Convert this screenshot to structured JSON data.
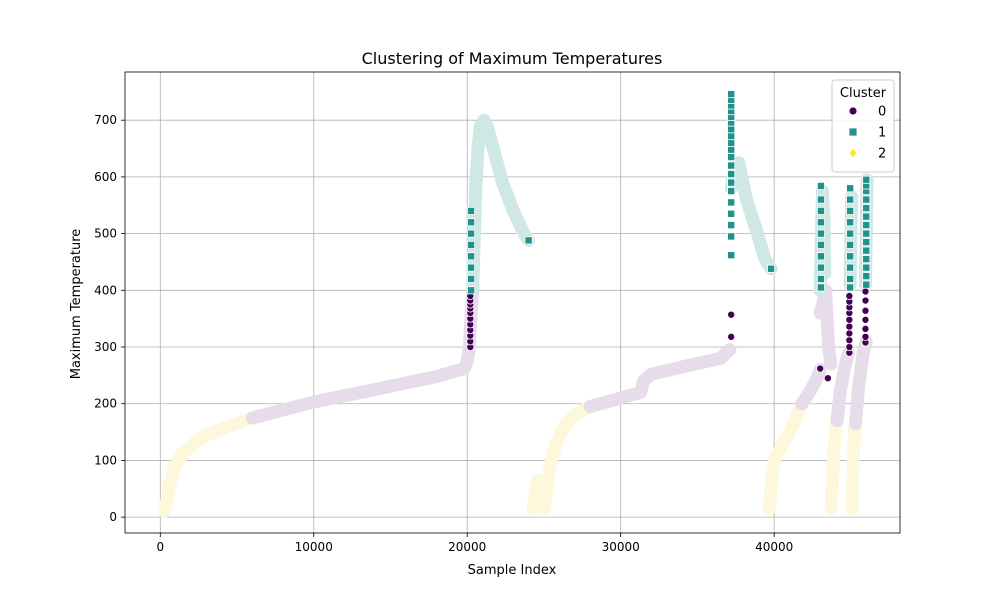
{
  "chart_data": {
    "type": "scatter",
    "title": "Clustering of Maximum Temperatures",
    "xlabel": "Sample Index",
    "ylabel": "Maximum Temperature",
    "xlim": [
      -2300,
      48200
    ],
    "ylim": [
      -28,
      785
    ],
    "grid": true,
    "x_ticks": [
      0,
      10000,
      20000,
      30000,
      40000
    ],
    "x_tick_labels": [
      "0",
      "10000",
      "20000",
      "30000",
      "40000"
    ],
    "y_ticks": [
      0,
      100,
      200,
      300,
      400,
      500,
      600,
      700
    ],
    "y_tick_labels": [
      "0",
      "100",
      "200",
      "300",
      "400",
      "500",
      "600",
      "700"
    ],
    "legend": {
      "title": "Cluster",
      "position": "top-right",
      "entries": [
        {
          "label": "0",
          "marker": "circle",
          "color": "#440154"
        },
        {
          "label": "1",
          "marker": "square",
          "color": "#21918c"
        },
        {
          "label": "2",
          "marker": "diamond",
          "color": "#fde725"
        }
      ]
    },
    "faded_colors": {
      "0": "#e6dcea",
      "1": "#cfe7e5",
      "2": "#fdf7dc"
    },
    "trend_segments": [
      {
        "cluster": "2",
        "points": [
          [
            250,
            10
          ],
          [
            400,
            25
          ],
          [
            600,
            55
          ],
          [
            900,
            85
          ],
          [
            1500,
            115
          ],
          [
            3000,
            145
          ],
          [
            6000,
            175
          ]
        ]
      },
      {
        "cluster": "0",
        "points": [
          [
            6000,
            175
          ],
          [
            10000,
            203
          ],
          [
            14000,
            225
          ],
          [
            18000,
            248
          ],
          [
            19800,
            262
          ],
          [
            20000,
            275
          ],
          [
            20150,
            300
          ],
          [
            20250,
            360
          ],
          [
            20350,
            400
          ]
        ]
      },
      {
        "cluster": "1",
        "points": [
          [
            20350,
            400
          ],
          [
            20450,
            480
          ],
          [
            20550,
            580
          ],
          [
            20700,
            650
          ],
          [
            20850,
            690
          ],
          [
            21100,
            700
          ],
          [
            21300,
            690
          ],
          [
            21700,
            650
          ],
          [
            22300,
            590
          ],
          [
            23000,
            540
          ],
          [
            23700,
            500
          ],
          [
            24000,
            488
          ]
        ]
      },
      {
        "cluster": "2",
        "points": [
          [
            24300,
            15
          ],
          [
            24400,
            40
          ],
          [
            24600,
            65
          ]
        ]
      },
      {
        "cluster": "2",
        "points": [
          [
            25000,
            15
          ],
          [
            25200,
            50
          ],
          [
            25400,
            90
          ],
          [
            25800,
            130
          ],
          [
            26300,
            160
          ],
          [
            27000,
            180
          ],
          [
            28000,
            195
          ]
        ]
      },
      {
        "cluster": "0",
        "points": [
          [
            28000,
            195
          ],
          [
            30000,
            210
          ],
          [
            31300,
            220
          ],
          [
            31500,
            240
          ],
          [
            32000,
            252
          ],
          [
            34000,
            265
          ],
          [
            36500,
            280
          ],
          [
            37100,
            295
          ]
        ]
      },
      {
        "cluster": "1",
        "points": [
          [
            37200,
            580
          ],
          [
            37400,
            610
          ],
          [
            37700,
            625
          ],
          [
            38200,
            560
          ],
          [
            38800,
            510
          ],
          [
            39400,
            455
          ],
          [
            39800,
            438
          ]
        ]
      },
      {
        "cluster": "2",
        "points": [
          [
            39700,
            15
          ],
          [
            39800,
            60
          ],
          [
            40000,
            100
          ],
          [
            40600,
            130
          ],
          [
            41200,
            160
          ],
          [
            41800,
            200
          ]
        ]
      },
      {
        "cluster": "0",
        "points": [
          [
            41800,
            200
          ],
          [
            42300,
            220
          ],
          [
            42800,
            245
          ],
          [
            43000,
            260
          ]
        ]
      },
      {
        "cluster": "0",
        "points": [
          [
            43000,
            360
          ],
          [
            43200,
            380
          ],
          [
            43350,
            400
          ],
          [
            43550,
            300
          ],
          [
            43700,
            270
          ]
        ]
      },
      {
        "cluster": "1",
        "points": [
          [
            43000,
            400
          ],
          [
            43100,
            520
          ],
          [
            43150,
            575
          ],
          [
            43250,
            520
          ],
          [
            43300,
            430
          ]
        ]
      },
      {
        "cluster": "2",
        "points": [
          [
            43700,
            15
          ],
          [
            43800,
            60
          ],
          [
            43900,
            120
          ],
          [
            44050,
            170
          ]
        ]
      },
      {
        "cluster": "0",
        "points": [
          [
            44100,
            170
          ],
          [
            44300,
            220
          ],
          [
            44600,
            265
          ],
          [
            44850,
            290
          ]
        ]
      },
      {
        "cluster": "1",
        "points": [
          [
            44950,
            410
          ],
          [
            45000,
            500
          ],
          [
            45050,
            565
          ]
        ]
      },
      {
        "cluster": "2",
        "points": [
          [
            45100,
            15
          ],
          [
            45150,
            100
          ],
          [
            45250,
            160
          ]
        ]
      },
      {
        "cluster": "0",
        "points": [
          [
            45300,
            165
          ],
          [
            45500,
            230
          ],
          [
            45800,
            290
          ],
          [
            46000,
            310
          ]
        ]
      },
      {
        "cluster": "1",
        "points": [
          [
            45950,
            410
          ],
          [
            46000,
            500
          ],
          [
            46050,
            595
          ]
        ]
      }
    ],
    "series": [
      {
        "name": "0",
        "marker": "circle",
        "color": "#440154",
        "points": [
          [
            20200,
            300
          ],
          [
            20200,
            310
          ],
          [
            20200,
            320
          ],
          [
            20200,
            330
          ],
          [
            20200,
            340
          ],
          [
            20200,
            350
          ],
          [
            20200,
            360
          ],
          [
            20200,
            368
          ],
          [
            20200,
            375
          ],
          [
            20200,
            382
          ],
          [
            20200,
            390
          ],
          [
            37200,
            318
          ],
          [
            37200,
            357
          ],
          [
            43000,
            262
          ],
          [
            43500,
            245
          ],
          [
            44900,
            290
          ],
          [
            44900,
            300
          ],
          [
            44900,
            312
          ],
          [
            44900,
            324
          ],
          [
            44900,
            336
          ],
          [
            44900,
            348
          ],
          [
            44900,
            360
          ],
          [
            44900,
            370
          ],
          [
            44900,
            380
          ],
          [
            44900,
            390
          ],
          [
            45950,
            308
          ],
          [
            45950,
            318
          ],
          [
            45950,
            332
          ],
          [
            45950,
            348
          ],
          [
            45950,
            364
          ],
          [
            45950,
            382
          ],
          [
            45950,
            398
          ]
        ]
      },
      {
        "name": "1",
        "marker": "square",
        "color": "#21918c",
        "points": [
          [
            20250,
            400
          ],
          [
            20250,
            420
          ],
          [
            20250,
            440
          ],
          [
            20250,
            460
          ],
          [
            20250,
            480
          ],
          [
            20250,
            500
          ],
          [
            20250,
            520
          ],
          [
            20250,
            540
          ],
          [
            24000,
            488
          ],
          [
            37200,
            462
          ],
          [
            37200,
            495
          ],
          [
            37200,
            515
          ],
          [
            37200,
            535
          ],
          [
            37200,
            555
          ],
          [
            37200,
            575
          ],
          [
            37200,
            590
          ],
          [
            37200,
            605
          ],
          [
            37200,
            620
          ],
          [
            37200,
            635
          ],
          [
            37200,
            648
          ],
          [
            37200,
            660
          ],
          [
            37200,
            672
          ],
          [
            37200,
            684
          ],
          [
            37200,
            696
          ],
          [
            37200,
            706
          ],
          [
            37200,
            716
          ],
          [
            37200,
            726
          ],
          [
            37200,
            736
          ],
          [
            37200,
            746
          ],
          [
            39800,
            438
          ],
          [
            43050,
            405
          ],
          [
            43050,
            420
          ],
          [
            43050,
            440
          ],
          [
            43050,
            460
          ],
          [
            43050,
            480
          ],
          [
            43050,
            500
          ],
          [
            43050,
            520
          ],
          [
            43050,
            540
          ],
          [
            43050,
            560
          ],
          [
            43050,
            584
          ],
          [
            44950,
            405
          ],
          [
            44950,
            420
          ],
          [
            44950,
            440
          ],
          [
            44950,
            460
          ],
          [
            44950,
            480
          ],
          [
            44950,
            500
          ],
          [
            44950,
            520
          ],
          [
            44950,
            540
          ],
          [
            44950,
            560
          ],
          [
            44950,
            580
          ],
          [
            46000,
            410
          ],
          [
            46000,
            425
          ],
          [
            46000,
            440
          ],
          [
            46000,
            455
          ],
          [
            46000,
            470
          ],
          [
            46000,
            485
          ],
          [
            46000,
            500
          ],
          [
            46000,
            515
          ],
          [
            46000,
            530
          ],
          [
            46000,
            545
          ],
          [
            46000,
            560
          ],
          [
            46000,
            575
          ],
          [
            46000,
            585
          ],
          [
            46000,
            595
          ]
        ]
      },
      {
        "name": "2",
        "marker": "diamond",
        "color": "#fde725",
        "points": []
      }
    ]
  }
}
